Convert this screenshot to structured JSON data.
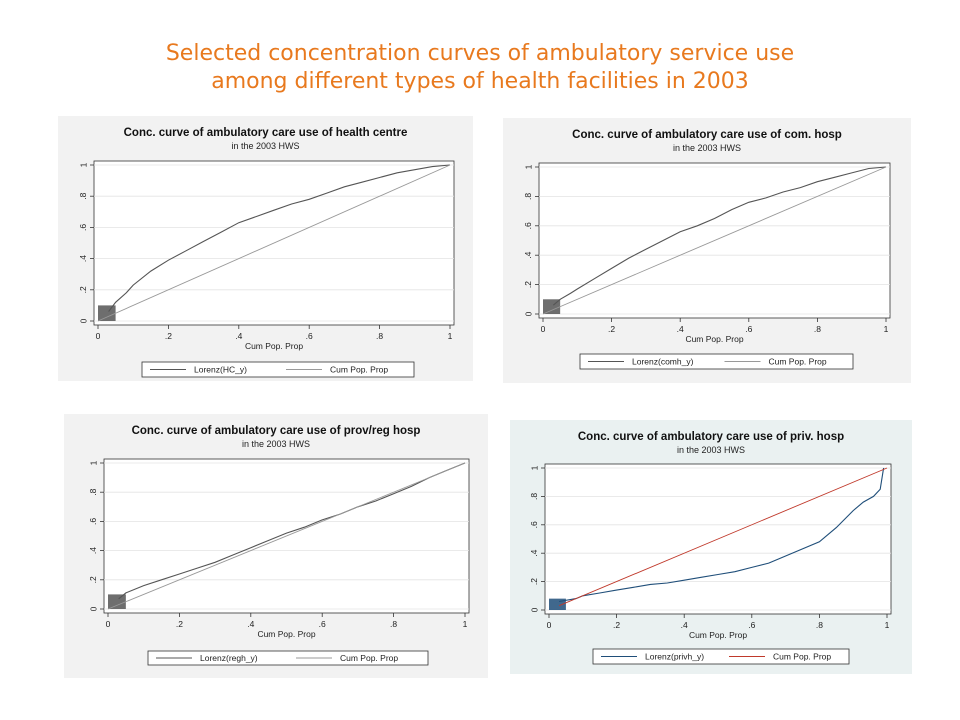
{
  "slide": {
    "title_line1": "Selected concentration curves of ambulatory service use",
    "title_line2": "among different types of health facilities in 2003",
    "title_color": "#E8791E"
  },
  "chart_data": [
    {
      "type": "line",
      "title": "Conc. curve of ambulatory care use of health centre",
      "subtitle": "in the 2003 HWS",
      "xlabel": "Cum Pop. Prop",
      "ylabel": "",
      "xlim": [
        0,
        1
      ],
      "ylim": [
        0,
        1
      ],
      "x_ticks": [
        "0",
        ".2",
        ".4",
        ".6",
        ".8",
        "1"
      ],
      "y_ticks": [
        "0",
        ".2",
        ".4",
        ".6",
        ".8",
        "1"
      ],
      "grid": true,
      "legend_position": "bottom",
      "background": "#F2F2F2",
      "series": [
        {
          "name": "Lorenz(HC_y)",
          "color": "#555555",
          "x": [
            0.03,
            0.05,
            0.08,
            0.1,
            0.15,
            0.2,
            0.25,
            0.3,
            0.35,
            0.4,
            0.45,
            0.5,
            0.55,
            0.6,
            0.65,
            0.7,
            0.75,
            0.8,
            0.85,
            0.9,
            0.95,
            1
          ],
          "y": [
            0.06,
            0.12,
            0.18,
            0.23,
            0.32,
            0.39,
            0.45,
            0.51,
            0.57,
            0.63,
            0.67,
            0.71,
            0.75,
            0.78,
            0.82,
            0.86,
            0.89,
            0.92,
            0.95,
            0.97,
            0.99,
            1
          ]
        },
        {
          "name": "Cum Pop. Prop",
          "color": "#999999",
          "x": [
            0,
            1
          ],
          "y": [
            0,
            1
          ]
        }
      ],
      "cluster": {
        "x": [
          0,
          0.05
        ],
        "y": [
          0,
          0.1
        ],
        "color": "#555555"
      }
    },
    {
      "type": "line",
      "title": "Conc. curve of ambulatory care use of com. hosp",
      "subtitle": "in the 2003 HWS",
      "xlabel": "Cum Pop. Prop",
      "ylabel": "",
      "xlim": [
        0,
        1
      ],
      "ylim": [
        0,
        1
      ],
      "x_ticks": [
        "0",
        ".2",
        ".4",
        ".6",
        ".8",
        "1"
      ],
      "y_ticks": [
        "0",
        ".2",
        ".4",
        ".6",
        ".8",
        "1"
      ],
      "grid": true,
      "legend_position": "bottom",
      "background": "#F2F2F2",
      "series": [
        {
          "name": "Lorenz(comh_y)",
          "color": "#555555",
          "x": [
            0.03,
            0.05,
            0.08,
            0.1,
            0.15,
            0.2,
            0.25,
            0.3,
            0.35,
            0.4,
            0.45,
            0.5,
            0.55,
            0.6,
            0.65,
            0.7,
            0.75,
            0.8,
            0.85,
            0.9,
            0.95,
            1
          ],
          "y": [
            0.06,
            0.1,
            0.14,
            0.17,
            0.24,
            0.31,
            0.38,
            0.44,
            0.5,
            0.56,
            0.6,
            0.65,
            0.71,
            0.76,
            0.79,
            0.83,
            0.86,
            0.9,
            0.93,
            0.96,
            0.99,
            1
          ]
        },
        {
          "name": "Cum Pop. Prop",
          "color": "#999999",
          "x": [
            0,
            1
          ],
          "y": [
            0,
            1
          ]
        }
      ],
      "cluster": {
        "x": [
          0,
          0.05
        ],
        "y": [
          0,
          0.1
        ],
        "color": "#555555"
      }
    },
    {
      "type": "line",
      "title": "Conc. curve of ambulatory care use of prov/reg hosp",
      "subtitle": "in the 2003 HWS",
      "xlabel": "Cum Pop. Prop",
      "ylabel": "",
      "xlim": [
        0,
        1
      ],
      "ylim": [
        0,
        1
      ],
      "x_ticks": [
        "0",
        ".2",
        ".4",
        ".6",
        ".8",
        "1"
      ],
      "y_ticks": [
        "0",
        ".2",
        ".4",
        ".6",
        ".8",
        "1"
      ],
      "grid": true,
      "legend_position": "bottom",
      "background": "#F2F2F2",
      "series": [
        {
          "name": "Lorenz(regh_y)",
          "color": "#555555",
          "x": [
            0.03,
            0.05,
            0.1,
            0.15,
            0.2,
            0.25,
            0.3,
            0.35,
            0.4,
            0.45,
            0.5,
            0.55,
            0.6,
            0.65,
            0.7,
            0.75,
            0.8,
            0.85,
            0.9,
            0.95,
            1
          ],
          "y": [
            0.07,
            0.11,
            0.16,
            0.2,
            0.24,
            0.28,
            0.32,
            0.37,
            0.42,
            0.47,
            0.52,
            0.56,
            0.61,
            0.65,
            0.7,
            0.74,
            0.79,
            0.84,
            0.9,
            0.95,
            1
          ]
        },
        {
          "name": "Cum Pop. Prop",
          "color": "#999999",
          "x": [
            0,
            1
          ],
          "y": [
            0,
            1
          ]
        }
      ],
      "cluster": {
        "x": [
          0,
          0.05
        ],
        "y": [
          0,
          0.1
        ],
        "color": "#555555"
      }
    },
    {
      "type": "line",
      "title": "Conc. curve of ambulatory care use of priv. hosp",
      "subtitle": "in the 2003 HWS",
      "xlabel": "Cum Pop. Prop",
      "ylabel": "",
      "xlim": [
        0,
        1
      ],
      "ylim": [
        0,
        1
      ],
      "x_ticks": [
        "0",
        ".2",
        ".4",
        ".6",
        ".8",
        "1"
      ],
      "y_ticks": [
        "0",
        ".2",
        ".4",
        ".6",
        ".8",
        "1"
      ],
      "grid": true,
      "legend_position": "bottom",
      "background": "#EAF1F1",
      "series": [
        {
          "name": "Lorenz(privh_y)",
          "color": "#1F4E79",
          "x": [
            0.03,
            0.08,
            0.1,
            0.15,
            0.2,
            0.25,
            0.3,
            0.35,
            0.4,
            0.45,
            0.5,
            0.55,
            0.6,
            0.65,
            0.7,
            0.75,
            0.8,
            0.85,
            0.9,
            0.93,
            0.96,
            0.98,
            0.99
          ],
          "y": [
            0.06,
            0.08,
            0.1,
            0.12,
            0.14,
            0.16,
            0.18,
            0.19,
            0.21,
            0.23,
            0.25,
            0.27,
            0.3,
            0.33,
            0.38,
            0.43,
            0.48,
            0.58,
            0.7,
            0.76,
            0.8,
            0.85,
            1.0
          ]
        },
        {
          "name": "Cum Pop. Prop",
          "color": "#C0392B",
          "x": [
            0.03,
            1
          ],
          "y": [
            0.03,
            1
          ]
        }
      ],
      "cluster": {
        "x": [
          0,
          0.05
        ],
        "y": [
          0,
          0.08
        ],
        "color": "#1F4E79"
      }
    }
  ]
}
